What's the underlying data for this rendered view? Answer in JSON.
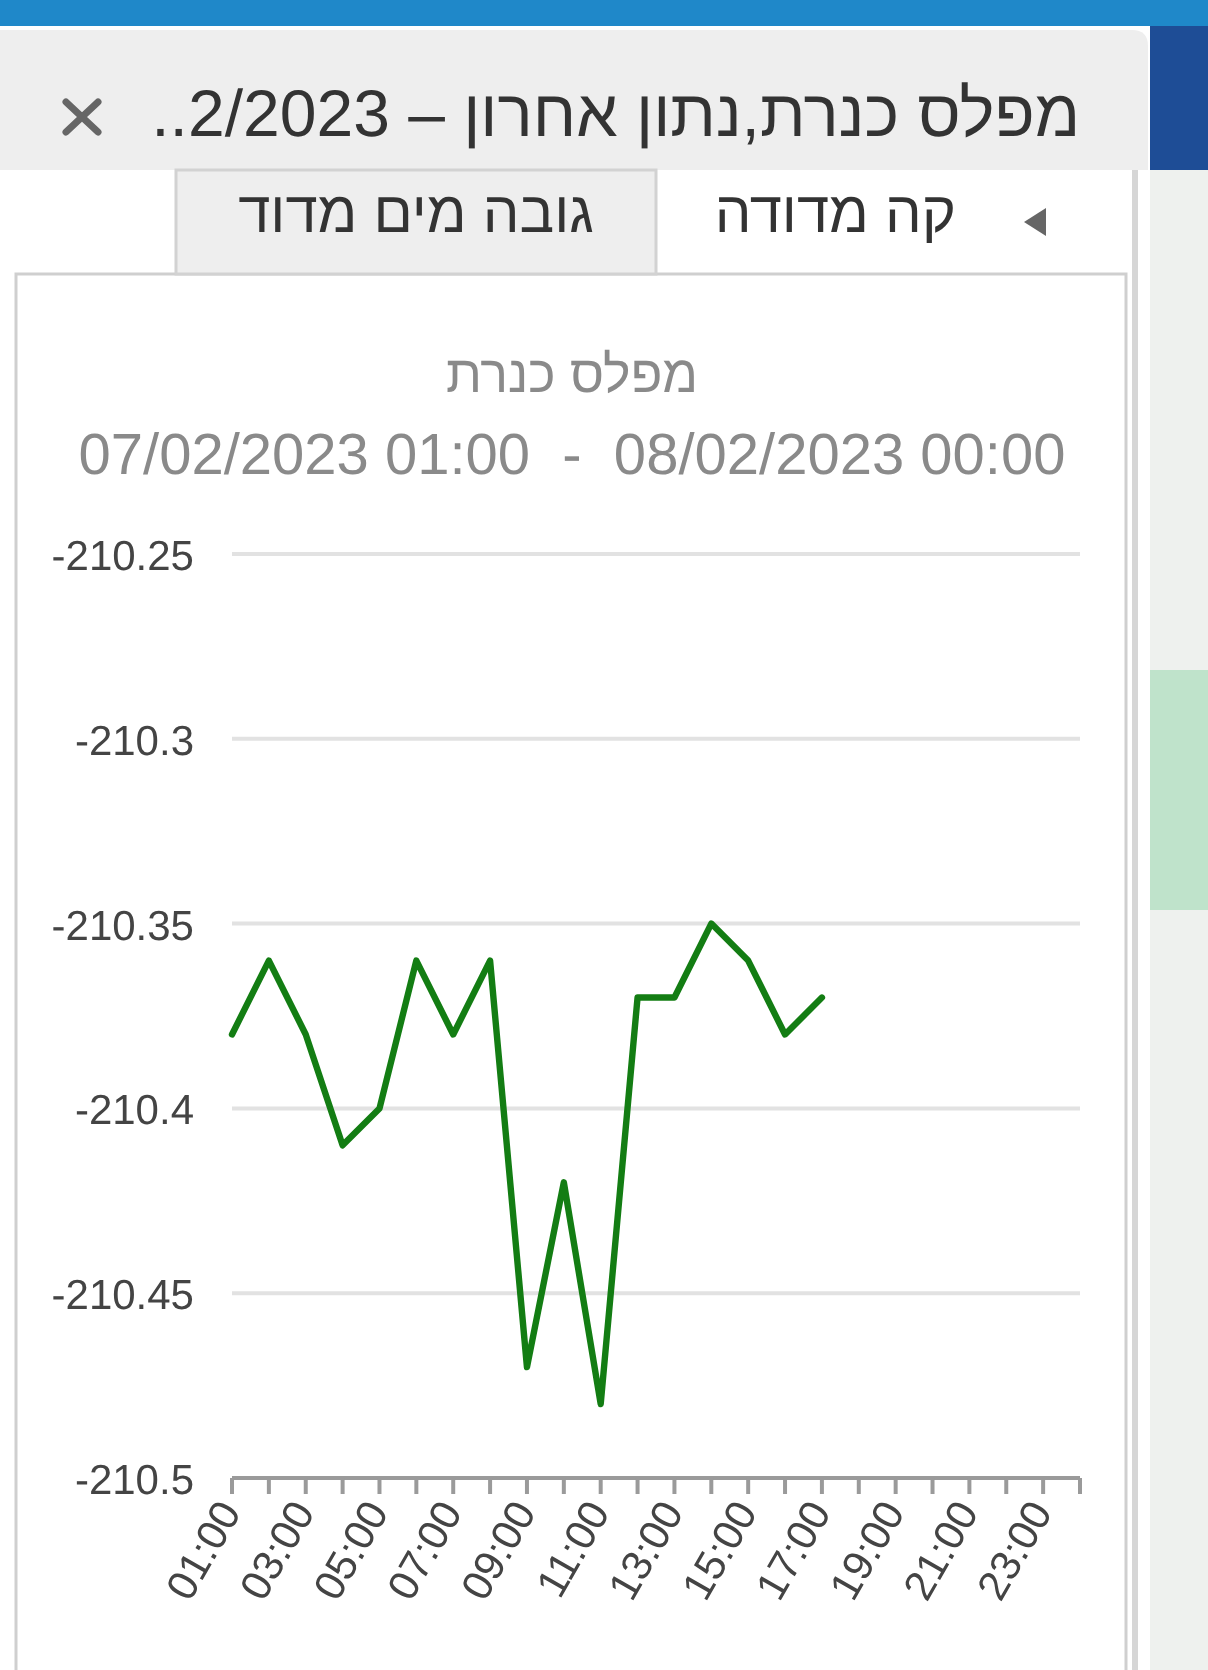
{
  "chart_data": {
    "type": "line",
    "title": "מפלס כנרת",
    "subtitle": "07/02/2023 01:00  -  08/02/2023 00:00",
    "annotations": [
      "מפלס כנרת,נתון אחרון – 2/2023..",
      "קה מדודה",
      "גובה מים מדוד"
    ],
    "x": [
      1,
      2,
      3,
      4,
      5,
      6,
      7,
      8,
      9,
      10,
      11,
      12,
      13,
      14,
      15,
      16,
      17
    ],
    "series": [
      {
        "color": "#137d13",
        "values": [
          -210.38,
          -210.36,
          -210.38,
          -210.41,
          -210.4,
          -210.36,
          -210.38,
          -210.36,
          -210.47,
          -210.42,
          -210.48,
          -210.37,
          -210.37,
          -210.35,
          -210.36,
          -210.38,
          -210.37
        ]
      }
    ],
    "xlim": [
      1,
      24
    ],
    "xticks": [
      {
        "value": 1,
        "label": "01:00"
      },
      {
        "value": 2,
        "label": null
      },
      {
        "value": 3,
        "label": "03:00"
      },
      {
        "value": 4,
        "label": null
      },
      {
        "value": 5,
        "label": "05:00"
      },
      {
        "value": 6,
        "label": null
      },
      {
        "value": 7,
        "label": "07:00"
      },
      {
        "value": 8,
        "label": null
      },
      {
        "value": 9,
        "label": "09:00"
      },
      {
        "value": 10,
        "label": null
      },
      {
        "value": 11,
        "label": "11:00"
      },
      {
        "value": 12,
        "label": null
      },
      {
        "value": 13,
        "label": "13:00"
      },
      {
        "value": 14,
        "label": null
      },
      {
        "value": 15,
        "label": "15:00"
      },
      {
        "value": 16,
        "label": null
      },
      {
        "value": 17,
        "label": "17:00"
      },
      {
        "value": 18,
        "label": null
      },
      {
        "value": 19,
        "label": "19:00"
      },
      {
        "value": 20,
        "label": null
      },
      {
        "value": 21,
        "label": "21:00"
      },
      {
        "value": 22,
        "label": null
      },
      {
        "value": 23,
        "label": "23:00"
      },
      {
        "value": 24,
        "label": null
      }
    ],
    "ylim": [
      -210.5,
      -210.25
    ],
    "yticks": [
      -210.25,
      -210.3,
      -210.35,
      -210.4,
      -210.45,
      -210.5
    ],
    "grid": "y"
  }
}
